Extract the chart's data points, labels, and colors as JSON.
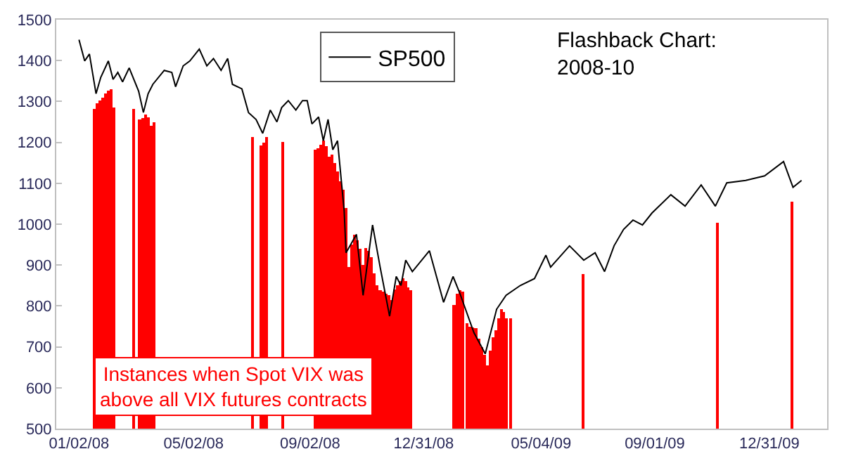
{
  "chart_data": {
    "type": "line",
    "title": "Flashback Chart:\n2008-10",
    "annotations": [
      "Instances when Spot VIX was\nabove all VIX futures contracts"
    ],
    "xlim": [
      "2007-12-09",
      "2010-03-02"
    ],
    "xticks": [
      {
        "value": "2008-01-02",
        "label": "01/02/08"
      },
      {
        "value": "2008-05-02",
        "label": "05/02/08"
      },
      {
        "value": "2008-09-02",
        "label": "09/02/08"
      },
      {
        "value": "2008-12-31",
        "label": "12/31/08"
      },
      {
        "value": "2009-05-04",
        "label": "05/04/09"
      },
      {
        "value": "2009-09-01",
        "label": "09/01/09"
      },
      {
        "value": "2009-12-31",
        "label": "12/31/09"
      }
    ],
    "ylim": [
      500,
      1500
    ],
    "yticks": [
      500,
      600,
      700,
      800,
      900,
      1000,
      1100,
      1200,
      1300,
      1400,
      1500
    ],
    "grid": false,
    "legend": "top",
    "marker": "none",
    "line_style": "solid",
    "series": [
      {
        "name": "SP500",
        "color": "#000000",
        "x": [
          "2008-01-02",
          "2008-01-08",
          "2008-01-13",
          "2008-01-20",
          "2008-01-25",
          "2008-02-02",
          "2008-02-07",
          "2008-02-12",
          "2008-02-17",
          "2008-02-24",
          "2008-03-05",
          "2008-03-10",
          "2008-03-15",
          "2008-03-20",
          "2008-04-01",
          "2008-04-09",
          "2008-04-13",
          "2008-04-21",
          "2008-04-28",
          "2008-05-08",
          "2008-05-16",
          "2008-05-23",
          "2008-05-31",
          "2008-06-07",
          "2008-06-12",
          "2008-06-22",
          "2008-06-29",
          "2008-07-07",
          "2008-07-14",
          "2008-07-22",
          "2008-07-29",
          "2008-08-03",
          "2008-08-10",
          "2008-08-18",
          "2008-08-25",
          "2008-08-30",
          "2008-09-04",
          "2008-09-11",
          "2008-09-16",
          "2008-09-21",
          "2008-09-26",
          "2008-10-01",
          "2008-10-08",
          "2008-10-10",
          "2008-10-21",
          "2008-10-28",
          "2008-11-07",
          "2008-11-15",
          "2008-11-25",
          "2008-12-02",
          "2008-12-07",
          "2008-12-12",
          "2008-12-19",
          "2009-01-06",
          "2009-01-21",
          "2009-01-31",
          "2009-02-07",
          "2009-02-22",
          "2009-03-06",
          "2009-03-18",
          "2009-03-28",
          "2009-04-12",
          "2009-04-27",
          "2009-05-09",
          "2009-05-14",
          "2009-06-03",
          "2009-06-18",
          "2009-06-30",
          "2009-07-10",
          "2009-07-20",
          "2009-07-30",
          "2009-08-09",
          "2009-08-19",
          "2009-08-29",
          "2009-09-18",
          "2009-10-03",
          "2009-10-20",
          "2009-11-04",
          "2009-11-16",
          "2009-12-06",
          "2009-12-26",
          "2010-01-15",
          "2010-01-25",
          "2010-02-03"
        ],
        "values": [
          1451,
          1399,
          1416,
          1319,
          1359,
          1399,
          1354,
          1371,
          1348,
          1382,
          1325,
          1273,
          1319,
          1342,
          1376,
          1371,
          1336,
          1387,
          1399,
          1428,
          1387,
          1405,
          1376,
          1405,
          1342,
          1331,
          1273,
          1256,
          1222,
          1279,
          1250,
          1285,
          1302,
          1279,
          1302,
          1302,
          1245,
          1262,
          1204,
          1256,
          1182,
          1204,
          1033,
          930,
          975,
          826,
          998,
          895,
          775,
          872,
          850,
          912,
          884,
          935,
          809,
          872,
          832,
          735,
          683,
          792,
          826,
          850,
          867,
          924,
          895,
          947,
          912,
          930,
          884,
          947,
          987,
          1010,
          998,
          1027,
          1072,
          1044,
          1096,
          1044,
          1101,
          1107,
          1118,
          1153,
          1090,
          1107
        ]
      },
      {
        "type": "bar",
        "color": "#ff0000",
        "x": [
          "2008-01-18",
          "2008-01-21",
          "2008-01-24",
          "2008-01-27",
          "2008-01-30",
          "2008-02-02",
          "2008-02-05",
          "2008-02-08",
          "2008-02-29",
          "2008-03-06",
          "2008-03-09",
          "2008-03-12",
          "2008-03-15",
          "2008-03-18",
          "2008-03-21",
          "2008-07-03",
          "2008-07-12",
          "2008-07-15",
          "2008-07-18",
          "2008-08-04",
          "2008-09-07",
          "2008-09-10",
          "2008-09-13",
          "2008-09-16",
          "2008-09-19",
          "2008-09-22",
          "2008-09-25",
          "2008-09-28",
          "2008-10-01",
          "2008-10-04",
          "2008-10-07",
          "2008-10-10",
          "2008-10-13",
          "2008-10-16",
          "2008-10-19",
          "2008-10-22",
          "2008-10-25",
          "2008-10-28",
          "2008-10-31",
          "2008-11-03",
          "2008-11-06",
          "2008-11-09",
          "2008-11-12",
          "2008-11-15",
          "2008-11-18",
          "2008-11-21",
          "2008-11-24",
          "2008-11-27",
          "2008-11-30",
          "2008-12-03",
          "2008-12-06",
          "2008-12-09",
          "2008-12-12",
          "2008-12-14",
          "2008-12-17",
          "2009-02-01",
          "2009-02-04",
          "2009-02-07",
          "2009-02-10",
          "2009-02-15",
          "2009-02-18",
          "2009-02-21",
          "2009-02-24",
          "2009-02-27",
          "2009-03-02",
          "2009-03-05",
          "2009-03-08",
          "2009-03-11",
          "2009-03-14",
          "2009-03-17",
          "2009-03-20",
          "2009-03-23",
          "2009-03-25",
          "2009-03-28",
          "2009-04-02",
          "2009-06-17",
          "2009-11-06",
          "2010-01-24"
        ],
        "values": [
          1282,
          1295,
          1302,
          1310,
          1320,
          1326,
          1330,
          1285,
          1282,
          1256,
          1260,
          1268,
          1262,
          1240,
          1250,
          1213,
          1193,
          1200,
          1213,
          1201,
          1182,
          1185,
          1195,
          1204,
          1190,
          1165,
          1170,
          1150,
          1129,
          1105,
          1085,
          1040,
          895,
          950,
          975,
          960,
          940,
          900,
          941,
          935,
          920,
          880,
          850,
          838,
          835,
          830,
          826,
          815,
          840,
          850,
          860,
          867,
          860,
          845,
          838,
          803,
          830,
          838,
          835,
          758,
          750,
          747,
          745,
          720,
          700,
          680,
          655,
          690,
          723,
          740,
          770,
          792,
          785,
          770,
          769,
          878,
          1004,
          1055
        ]
      }
    ]
  }
}
